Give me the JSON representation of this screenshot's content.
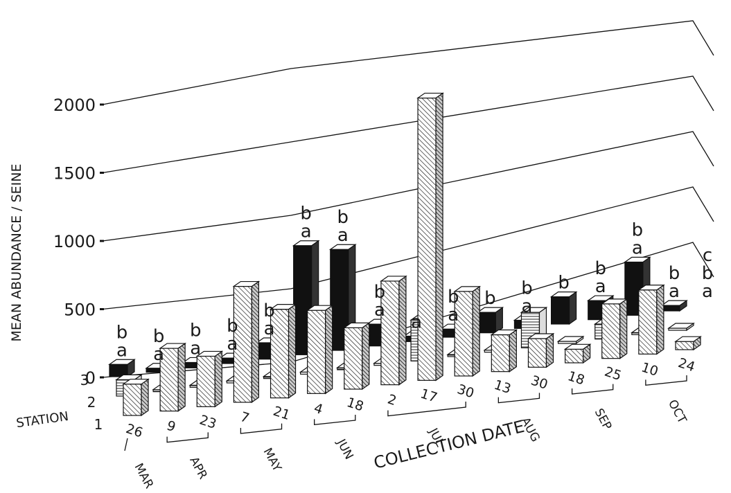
{
  "chart_data": {
    "type": "bar",
    "ylabel": "MEAN ABUNDANCE / SEINE",
    "xlabel": "COLLECTION DATE",
    "depth_label": "STATION",
    "y_ticks": [
      "0",
      "500",
      "1000",
      "1500",
      "2000"
    ],
    "ylim": [
      0,
      2000
    ],
    "stations": [
      "3",
      "2",
      "1"
    ],
    "stations_estimated_order_back_to_front": [
      "3",
      "2",
      "1"
    ],
    "station_fills": {
      "3": "#111111",
      "2": "horizontal-hatch",
      "1": "diagonal-hatch"
    },
    "dates": [
      {
        "day": "26",
        "month": "MAR"
      },
      {
        "day": "9",
        "month": "APR"
      },
      {
        "day": "23",
        "month": "APR"
      },
      {
        "day": "7",
        "month": "MAY"
      },
      {
        "day": "21",
        "month": "MAY"
      },
      {
        "day": "4",
        "month": "JUN"
      },
      {
        "day": "18",
        "month": "JUN"
      },
      {
        "day": "2",
        "month": "JUL"
      },
      {
        "day": "17",
        "month": "JUL"
      },
      {
        "day": "30",
        "month": "JUL"
      },
      {
        "day": "13",
        "month": "AUG"
      },
      {
        "day": "30",
        "month": "AUG"
      },
      {
        "day": "18",
        "month": "SEP"
      },
      {
        "day": "25",
        "month": "SEP"
      },
      {
        "day": "10",
        "month": "OCT"
      },
      {
        "day": "24",
        "month": "OCT"
      }
    ],
    "month_groups": [
      {
        "label": "MAR",
        "from": 0,
        "to": 0
      },
      {
        "label": "APR",
        "from": 1,
        "to": 2
      },
      {
        "label": "MAY",
        "from": 3,
        "to": 4
      },
      {
        "label": "JUN",
        "from": 5,
        "to": 6
      },
      {
        "label": "JUL",
        "from": 7,
        "to": 9
      },
      {
        "label": "AUG",
        "from": 10,
        "to": 11
      },
      {
        "label": "SEP",
        "from": 12,
        "to": 13
      },
      {
        "label": "OCT",
        "from": 14,
        "to": 15
      }
    ],
    "series": [
      {
        "name": "3",
        "values": [
          90,
          30,
          40,
          40,
          120,
          800,
          740,
          160,
          40,
          60,
          150,
          60,
          200,
          140,
          390,
          40
        ]
      },
      {
        "name": "2",
        "values": [
          120,
          10,
          10,
          10,
          10,
          10,
          10,
          10,
          300,
          10,
          10,
          260,
          10,
          110,
          10,
          10
        ]
      },
      {
        "name": "1",
        "values": [
          230,
          460,
          370,
          850,
          650,
          610,
          450,
          760,
          2070,
          620,
          270,
          210,
          100,
          400,
          470,
          60
        ]
      }
    ],
    "annotations": [
      {
        "date_index": 0,
        "letters": [
          "b",
          "a"
        ]
      },
      {
        "date_index": 1,
        "letters": [
          "b",
          "a"
        ]
      },
      {
        "date_index": 2,
        "letters": [
          "b",
          "a"
        ]
      },
      {
        "date_index": 3,
        "letters": [
          "b",
          "a"
        ]
      },
      {
        "date_index": 4,
        "letters": [
          "b",
          "a"
        ]
      },
      {
        "date_index": 5,
        "letters": [
          "b",
          "a"
        ]
      },
      {
        "date_index": 6,
        "letters": [
          "b",
          "a"
        ]
      },
      {
        "date_index": 7,
        "letters": [
          "b",
          "a"
        ]
      },
      {
        "date_index": 8,
        "letters": [
          "a"
        ]
      },
      {
        "date_index": 9,
        "letters": [
          "b",
          "a"
        ]
      },
      {
        "date_index": 10,
        "letters": [
          "b"
        ]
      },
      {
        "date_index": 11,
        "letters": [
          "b",
          "a"
        ]
      },
      {
        "date_index": 12,
        "letters": [
          "b"
        ]
      },
      {
        "date_index": 13,
        "letters": [
          "b",
          "a"
        ]
      },
      {
        "date_index": 14,
        "letters": [
          "b",
          "a"
        ]
      },
      {
        "date_index": 15,
        "letters": [
          "b",
          "a"
        ]
      },
      {
        "date_index": 15,
        "letters": [
          "c",
          "b",
          "a"
        ]
      }
    ],
    "grid": true
  }
}
